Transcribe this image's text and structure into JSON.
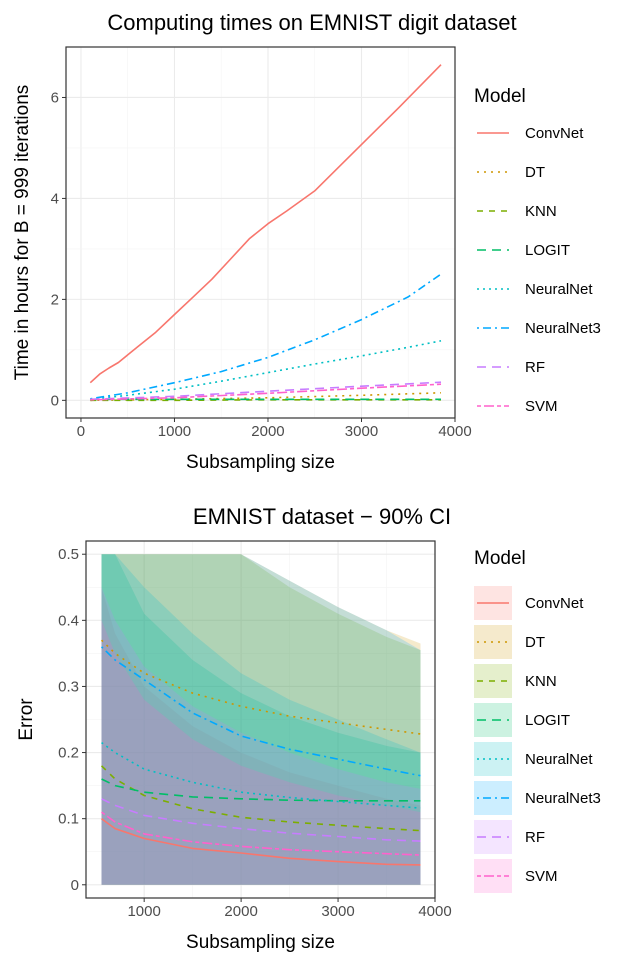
{
  "chart_data": [
    {
      "type": "line",
      "title": "Computing times on EMNIST digit dataset",
      "xlabel": "Subsampling size",
      "ylabel": "Time in hours for B = 999 iterations",
      "xlim": [
        -160,
        4000
      ],
      "ylim": [
        -0.35,
        7.0
      ],
      "xticks": [
        0,
        1000,
        2000,
        3000,
        4000
      ],
      "yticks": [
        0,
        2,
        4,
        6
      ],
      "grid": true,
      "legend_title": "Model",
      "legend_position": "right",
      "series": [
        {
          "name": "ConvNet",
          "color": "#F8766D",
          "dash": "solid",
          "x": [
            100,
            200,
            300,
            400,
            500,
            600,
            800,
            1000,
            1200,
            1400,
            1600,
            1800,
            2000,
            2200,
            2500,
            2800,
            3100,
            3400,
            3850
          ],
          "y": [
            0.35,
            0.52,
            0.64,
            0.75,
            0.9,
            1.05,
            1.35,
            1.7,
            2.05,
            2.4,
            2.8,
            3.2,
            3.5,
            3.75,
            4.15,
            4.7,
            5.25,
            5.8,
            6.65
          ]
        },
        {
          "name": "DT",
          "color": "#CD9600",
          "dash": "dot",
          "x": [
            100,
            1000,
            2000,
            3000,
            3850
          ],
          "y": [
            0.0,
            0.02,
            0.05,
            0.1,
            0.15
          ]
        },
        {
          "name": "KNN",
          "color": "#7CAE00",
          "dash": "dash",
          "x": [
            100,
            1000,
            2000,
            3000,
            3850
          ],
          "y": [
            0.0,
            0.0,
            0.01,
            0.01,
            0.01
          ]
        },
        {
          "name": "LOGIT",
          "color": "#00BE67",
          "dash": "longdash",
          "x": [
            100,
            1000,
            2000,
            3000,
            3850
          ],
          "y": [
            0.02,
            0.02,
            0.02,
            0.02,
            0.02
          ]
        },
        {
          "name": "NeuralNet",
          "color": "#00BFC4",
          "dash": "dotted-dense",
          "x": [
            100,
            500,
            1000,
            1500,
            2000,
            2500,
            3000,
            3500,
            3850
          ],
          "y": [
            0.02,
            0.1,
            0.22,
            0.38,
            0.55,
            0.72,
            0.88,
            1.05,
            1.18
          ]
        },
        {
          "name": "NeuralNet3",
          "color": "#00A9FF",
          "dash": "dotdash",
          "x": [
            100,
            500,
            1000,
            1500,
            2000,
            2500,
            3000,
            3500,
            3850
          ],
          "y": [
            0.03,
            0.15,
            0.35,
            0.57,
            0.85,
            1.2,
            1.6,
            2.05,
            2.5
          ]
        },
        {
          "name": "RF",
          "color": "#C77CFF",
          "dash": "longdash",
          "x": [
            100,
            1000,
            2000,
            3000,
            3850
          ],
          "y": [
            0.02,
            0.08,
            0.18,
            0.28,
            0.36
          ]
        },
        {
          "name": "SVM",
          "color": "#FF61CC",
          "dash": "twodash",
          "x": [
            100,
            1000,
            2000,
            3000,
            3850
          ],
          "y": [
            0.01,
            0.05,
            0.14,
            0.24,
            0.32
          ]
        }
      ]
    },
    {
      "type": "area",
      "title": "EMNIST dataset − 90% CI",
      "xlabel": "Subsampling size",
      "ylabel": "Error",
      "xlim": [
        400,
        4000
      ],
      "ylim": [
        -0.02,
        0.52
      ],
      "xticks": [
        1000,
        2000,
        3000,
        4000
      ],
      "yticks": [
        0.0,
        0.1,
        0.2,
        0.3,
        0.4,
        0.5
      ],
      "grid": true,
      "legend_title": "Model",
      "legend_position": "right",
      "series": [
        {
          "name": "ConvNet",
          "color": "#F8766D",
          "dash": "solid",
          "x": [
            560,
            700,
            1000,
            1500,
            2000,
            2500,
            3000,
            3500,
            3850
          ],
          "mean": [
            0.1,
            0.085,
            0.07,
            0.055,
            0.048,
            0.04,
            0.035,
            0.031,
            0.03
          ],
          "lower": [
            0.0,
            0.0,
            0.0,
            0.0,
            0.0,
            0.0,
            0.0,
            0.0,
            0.0
          ],
          "upper": [
            0.45,
            0.38,
            0.3,
            0.24,
            0.2,
            0.17,
            0.15,
            0.13,
            0.12
          ]
        },
        {
          "name": "DT",
          "color": "#CD9600",
          "dash": "dot",
          "x": [
            560,
            700,
            1000,
            1500,
            2000,
            2500,
            3000,
            3500,
            3850
          ],
          "mean": [
            0.37,
            0.35,
            0.32,
            0.29,
            0.27,
            0.255,
            0.245,
            0.235,
            0.228
          ],
          "lower": [
            0.0,
            0.0,
            0.0,
            0.0,
            0.0,
            0.0,
            0.0,
            0.0,
            0.0
          ],
          "upper": [
            0.5,
            0.5,
            0.5,
            0.5,
            0.5,
            0.46,
            0.42,
            0.385,
            0.365
          ]
        },
        {
          "name": "KNN",
          "color": "#7CAE00",
          "dash": "dash",
          "x": [
            560,
            700,
            1000,
            1500,
            2000,
            2500,
            3000,
            3500,
            3850
          ],
          "mean": [
            0.18,
            0.16,
            0.135,
            0.115,
            0.102,
            0.095,
            0.09,
            0.085,
            0.082
          ],
          "lower": [
            0.0,
            0.0,
            0.0,
            0.0,
            0.0,
            0.0,
            0.0,
            0.0,
            0.0
          ],
          "upper": [
            0.5,
            0.5,
            0.5,
            0.5,
            0.5,
            0.45,
            0.41,
            0.375,
            0.355
          ]
        },
        {
          "name": "LOGIT",
          "color": "#00BE67",
          "dash": "longdash",
          "x": [
            560,
            700,
            1000,
            1500,
            2000,
            2500,
            3000,
            3500,
            3850
          ],
          "mean": [
            0.16,
            0.15,
            0.14,
            0.133,
            0.13,
            0.128,
            0.127,
            0.127,
            0.127
          ],
          "lower": [
            0.0,
            0.0,
            0.0,
            0.0,
            0.0,
            0.0,
            0.0,
            0.0,
            0.0
          ],
          "upper": [
            0.5,
            0.5,
            0.41,
            0.34,
            0.29,
            0.255,
            0.23,
            0.21,
            0.2
          ]
        },
        {
          "name": "NeuralNet",
          "color": "#00BFC4",
          "dash": "dotted-dense",
          "x": [
            560,
            700,
            1000,
            1500,
            2000,
            2500,
            3000,
            3500,
            3850
          ],
          "mean": [
            0.215,
            0.2,
            0.175,
            0.155,
            0.14,
            0.132,
            0.126,
            0.12,
            0.116
          ],
          "lower": [
            0.0,
            0.0,
            0.0,
            0.0,
            0.0,
            0.0,
            0.0,
            0.0,
            0.0
          ],
          "upper": [
            0.5,
            0.5,
            0.45,
            0.38,
            0.32,
            0.28,
            0.25,
            0.22,
            0.2
          ]
        },
        {
          "name": "NeuralNet3",
          "color": "#00A9FF",
          "dash": "dotdash",
          "x": [
            560,
            700,
            1000,
            1500,
            2000,
            2500,
            3000,
            3500,
            3850
          ],
          "mean": [
            0.36,
            0.34,
            0.31,
            0.26,
            0.225,
            0.205,
            0.19,
            0.175,
            0.165
          ],
          "lower": [
            0.0,
            0.0,
            0.0,
            0.0,
            0.0,
            0.0,
            0.0,
            0.0,
            0.0
          ],
          "upper": [
            0.5,
            0.5,
            0.5,
            0.5,
            0.5,
            0.46,
            0.42,
            0.385,
            0.355
          ]
        },
        {
          "name": "RF",
          "color": "#C77CFF",
          "dash": "longdash",
          "x": [
            560,
            700,
            1000,
            1500,
            2000,
            2500,
            3000,
            3500,
            3850
          ],
          "mean": [
            0.13,
            0.12,
            0.105,
            0.093,
            0.085,
            0.078,
            0.073,
            0.068,
            0.066
          ],
          "lower": [
            0.0,
            0.0,
            0.0,
            0.0,
            0.0,
            0.0,
            0.0,
            0.0,
            0.0
          ],
          "upper": [
            0.45,
            0.4,
            0.33,
            0.27,
            0.23,
            0.2,
            0.175,
            0.155,
            0.145
          ]
        },
        {
          "name": "SVM",
          "color": "#FF61CC",
          "dash": "twodash",
          "x": [
            560,
            700,
            1000,
            1500,
            2000,
            2500,
            3000,
            3500,
            3850
          ],
          "mean": [
            0.11,
            0.095,
            0.077,
            0.065,
            0.058,
            0.053,
            0.05,
            0.047,
            0.045
          ],
          "lower": [
            0.0,
            0.0,
            0.0,
            0.0,
            0.0,
            0.0,
            0.0,
            0.0,
            0.0
          ],
          "upper": [
            0.4,
            0.35,
            0.28,
            0.22,
            0.18,
            0.155,
            0.135,
            0.12,
            0.11
          ]
        }
      ]
    }
  ]
}
